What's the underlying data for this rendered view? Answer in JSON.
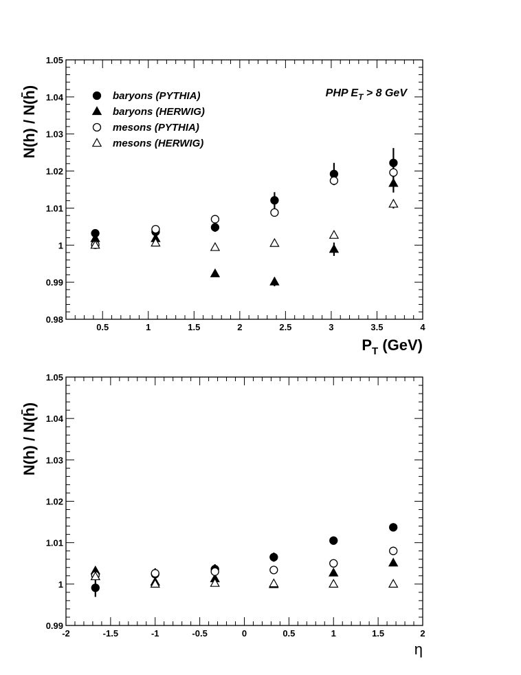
{
  "chart_data": [
    {
      "type": "scatter",
      "xlabel": "P_T (GeV)",
      "ylabel": "N(h) / N(h̄)",
      "xlim": [
        0.1,
        4.0
      ],
      "ylim": [
        0.98,
        1.05
      ],
      "xticks": [
        0.5,
        1,
        1.5,
        2,
        2.5,
        3,
        3.5,
        4
      ],
      "yticks": [
        0.98,
        0.99,
        1.0,
        1.01,
        1.02,
        1.03,
        1.04,
        1.05
      ],
      "xtick_labels": [
        "0.5",
        "1",
        "1.5",
        "2",
        "2.5",
        "3",
        "3.5",
        "4"
      ],
      "ytick_labels": [
        "0.98",
        "0.99",
        "1",
        "1.01",
        "1.02",
        "1.03",
        "1.04",
        "1.05"
      ],
      "annotation": "PHP E_T > 8 GeV",
      "legend_position": "top-left",
      "x": [
        0.42,
        1.08,
        1.73,
        2.38,
        3.03,
        3.68
      ],
      "series": [
        {
          "name": "baryons (PYTHIA)",
          "marker": "filled-circle",
          "values": [
            1.0032,
            1.0036,
            1.0048,
            1.0121,
            1.0192,
            1.0222
          ],
          "errors": [
            0.0008,
            0.0008,
            0.0012,
            0.0022,
            0.003,
            0.004
          ]
        },
        {
          "name": "baryons (HERWIG)",
          "marker": "filled-triangle",
          "values": [
            1.0018,
            1.0018,
            0.9923,
            0.9901,
            0.9989,
            1.0167
          ],
          "errors": [
            0.0006,
            0.0006,
            0.0006,
            0.0012,
            0.0018,
            0.0025
          ]
        },
        {
          "name": "mesons (PYTHIA)",
          "marker": "open-circle",
          "values": [
            1.0001,
            1.0043,
            1.007,
            1.0088,
            1.0174,
            1.0196
          ],
          "errors": [
            0.0004,
            0.0004,
            0.0005,
            0.0007,
            0.0012,
            0.0018
          ]
        },
        {
          "name": "mesons  (HERWIG)",
          "marker": "open-triangle",
          "values": [
            1.0,
            1.0006,
            0.9994,
            1.0005,
            1.0027,
            1.0111
          ],
          "errors": [
            0.0003,
            0.0003,
            0.0004,
            0.0005,
            0.0008,
            0.0012
          ]
        }
      ]
    },
    {
      "type": "scatter",
      "xlabel": "η",
      "ylabel": "N(h) / N(h̄)",
      "xlim": [
        -2,
        2
      ],
      "ylim": [
        0.99,
        1.05
      ],
      "xticks": [
        -2,
        -1.5,
        -1,
        -0.5,
        0,
        0.5,
        1,
        1.5,
        2
      ],
      "yticks": [
        0.99,
        1.0,
        1.01,
        1.02,
        1.03,
        1.04,
        1.05
      ],
      "xtick_labels": [
        "-2",
        "-1.5",
        "-1",
        "-0.5",
        "0",
        "0.5",
        "1",
        "1.5",
        "2"
      ],
      "ytick_labels": [
        "0.99",
        "1",
        "1.01",
        "1.02",
        "1.03",
        "1.04",
        "1.05"
      ],
      "x": [
        -1.67,
        -1.0,
        -0.33,
        0.33,
        1.0,
        1.67
      ],
      "series": [
        {
          "name": "baryons (PYTHIA)",
          "marker": "filled-circle",
          "values": [
            0.9991,
            1.0024,
            1.0036,
            1.0065,
            1.0105,
            1.0137
          ],
          "errors": [
            0.0022,
            0.0014,
            0.0012,
            0.0011,
            0.001,
            0.001
          ]
        },
        {
          "name": "baryons (HERWIG)",
          "marker": "filled-triangle",
          "values": [
            1.0032,
            1.0005,
            1.0013,
            0.9999,
            1.0027,
            1.0051
          ],
          "errors": [
            0.0006,
            0.0005,
            0.0005,
            0.0004,
            0.0005,
            0.0005
          ]
        },
        {
          "name": "mesons (PYTHIA)",
          "marker": "open-circle",
          "values": [
            1.0021,
            1.0026,
            1.003,
            1.0034,
            1.005,
            1.008
          ],
          "errors": [
            0.0005,
            0.0004,
            0.0004,
            0.0004,
            0.0004,
            0.0004
          ]
        },
        {
          "name": "mesons  (HERWIG)",
          "marker": "open-triangle",
          "values": [
            1.0018,
            1.0,
            1.0002,
            1.0001,
            1.0,
            1.0
          ],
          "errors": [
            0.0003,
            0.0003,
            0.0003,
            0.0003,
            0.0003,
            0.0003
          ]
        }
      ]
    }
  ]
}
